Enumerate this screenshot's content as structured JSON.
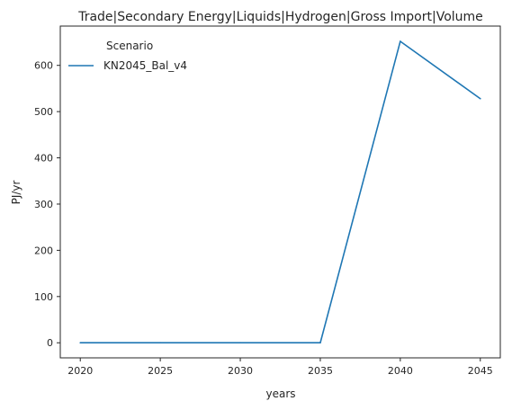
{
  "chart_data": {
    "type": "line",
    "title": "Trade|Secondary Energy|Liquids|Hydrogen|Gross Import|Volume",
    "xlabel": "years",
    "ylabel": "PJ/yr",
    "x": [
      2020,
      2025,
      2030,
      2035,
      2040,
      2045
    ],
    "xticks": [
      2020,
      2025,
      2030,
      2035,
      2040,
      2045
    ],
    "yticks": [
      0,
      100,
      200,
      300,
      400,
      500,
      600
    ],
    "xlim": [
      2018.75,
      2046.25
    ],
    "ylim": [
      -32.6,
      685
    ],
    "grid": false,
    "legend": {
      "title": "Scenario",
      "placement": "top-left"
    },
    "series": [
      {
        "name": "KN2045_Bal_v4",
        "color": "#1f77b4",
        "values": [
          0,
          0,
          0,
          0,
          652,
          528
        ]
      }
    ]
  }
}
